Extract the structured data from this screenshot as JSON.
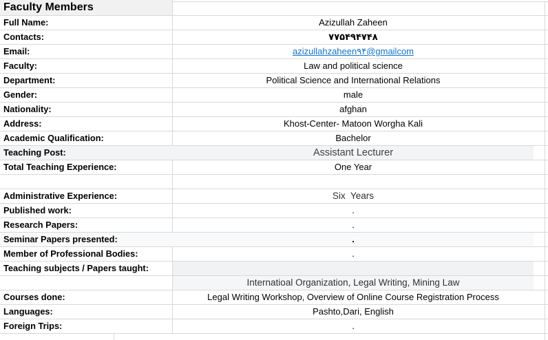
{
  "sheet_title": "Faculty Members",
  "colors": {
    "gridline": "#d8d8d8",
    "title_cell_bg": "#f1f1f1",
    "highlight_row_bg": "#f3f4f6",
    "subtle_row_bg": "#f8f9fa",
    "value_area_bg": "#f1f2f4",
    "hyperlink": "#1274cc"
  },
  "table": {
    "rows": [
      {
        "label": "Faculty Members",
        "value": "",
        "highlight": "title"
      },
      {
        "label": "Full Name:",
        "value": "Azizullah Zaheen"
      },
      {
        "label": "Contacts:",
        "value": "۷۷۵۴۹۴۷۴۸",
        "value_style": "bold"
      },
      {
        "label": "Email:",
        "value": "azizullahzaheen۹۴@gmailcom",
        "link": true
      },
      {
        "label": "Faculty:",
        "value": "Law and political science"
      },
      {
        "label": "Department:",
        "value": "Political Science and International Relations"
      },
      {
        "label": "Gender:",
        "value": "male"
      },
      {
        "label": "Nationality:",
        "value": "afghan"
      },
      {
        "label": "Address:",
        "value": "Khost-Center- Matoon Worgha Kali"
      },
      {
        "label": "Academic Qualification:",
        "value": "Bachelor"
      },
      {
        "label": "Teaching Post:",
        "value": "Assistant Lecturer",
        "highlight": "full",
        "value_style": "large"
      },
      {
        "label": "Total Teaching Experience:",
        "value": "One Year"
      },
      {
        "label": "",
        "value": ""
      },
      {
        "label": "Administrative Experience:",
        "value": "Six  Years",
        "value_style": "alt"
      },
      {
        "label": "Published work:",
        "value": "."
      },
      {
        "label": "Research Papers:",
        "value": "."
      },
      {
        "label": "Seminar Papers presented:",
        "value": ".",
        "highlight": "subtle",
        "value_style": "bold"
      },
      {
        "label": "Member of Professional Bodies:",
        "value": "."
      },
      {
        "label": "Teaching subjects / Papers taught:",
        "value": "",
        "highlight": "value"
      },
      {
        "label": "",
        "value": "Internatioal Organization, Legal Writing, Mining Law",
        "highlight": "value2",
        "value_style": "alt"
      },
      {
        "label": "Courses done:",
        "value": "Legal Writing Workshop, Overview of Online Course Registration Process"
      },
      {
        "label": "Languages:",
        "value": "Pashto,Dari, English"
      },
      {
        "label": "Foreign Trips:",
        "value": "."
      }
    ]
  }
}
